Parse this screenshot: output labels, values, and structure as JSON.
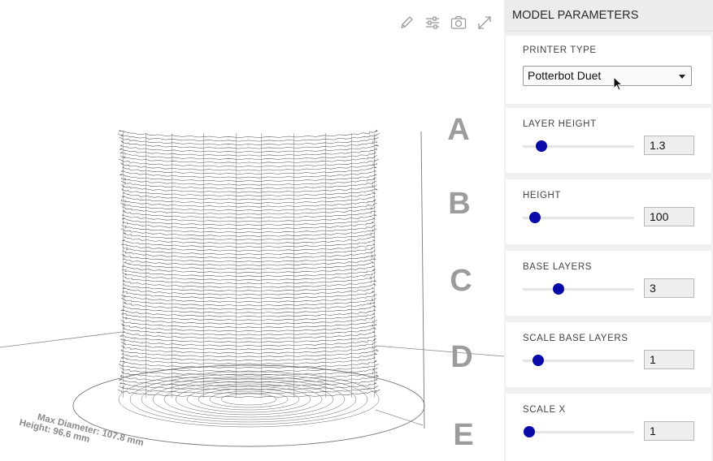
{
  "toolbar": {
    "icons": [
      "pencil-icon",
      "sliders-icon",
      "camera-icon",
      "expand-icon"
    ]
  },
  "viewport": {
    "letters": [
      "A",
      "B",
      "C",
      "D",
      "E"
    ],
    "dimension_text": {
      "line1": "Max Diameter: 107.8 mm",
      "line2": "Height: 96.6 mm"
    }
  },
  "panel": {
    "title": "MODEL PARAMETERS",
    "printer_type": {
      "label": "PRINTER TYPE",
      "value": "Potterbot Duet"
    },
    "params": [
      {
        "label": "LAYER HEIGHT",
        "value": "1.3",
        "fraction": 0.17
      },
      {
        "label": "HEIGHT",
        "value": "100",
        "fraction": 0.11
      },
      {
        "label": "BASE LAYERS",
        "value": "3",
        "fraction": 0.32
      },
      {
        "label": "SCALE BASE LAYERS",
        "value": "1",
        "fraction": 0.14
      },
      {
        "label": "SCALE X",
        "value": "1",
        "fraction": 0.06
      }
    ]
  },
  "colors": {
    "accent": "#0a0aa8",
    "panel_bg": "#f0f0f0",
    "letters": "#9c9c9c"
  }
}
